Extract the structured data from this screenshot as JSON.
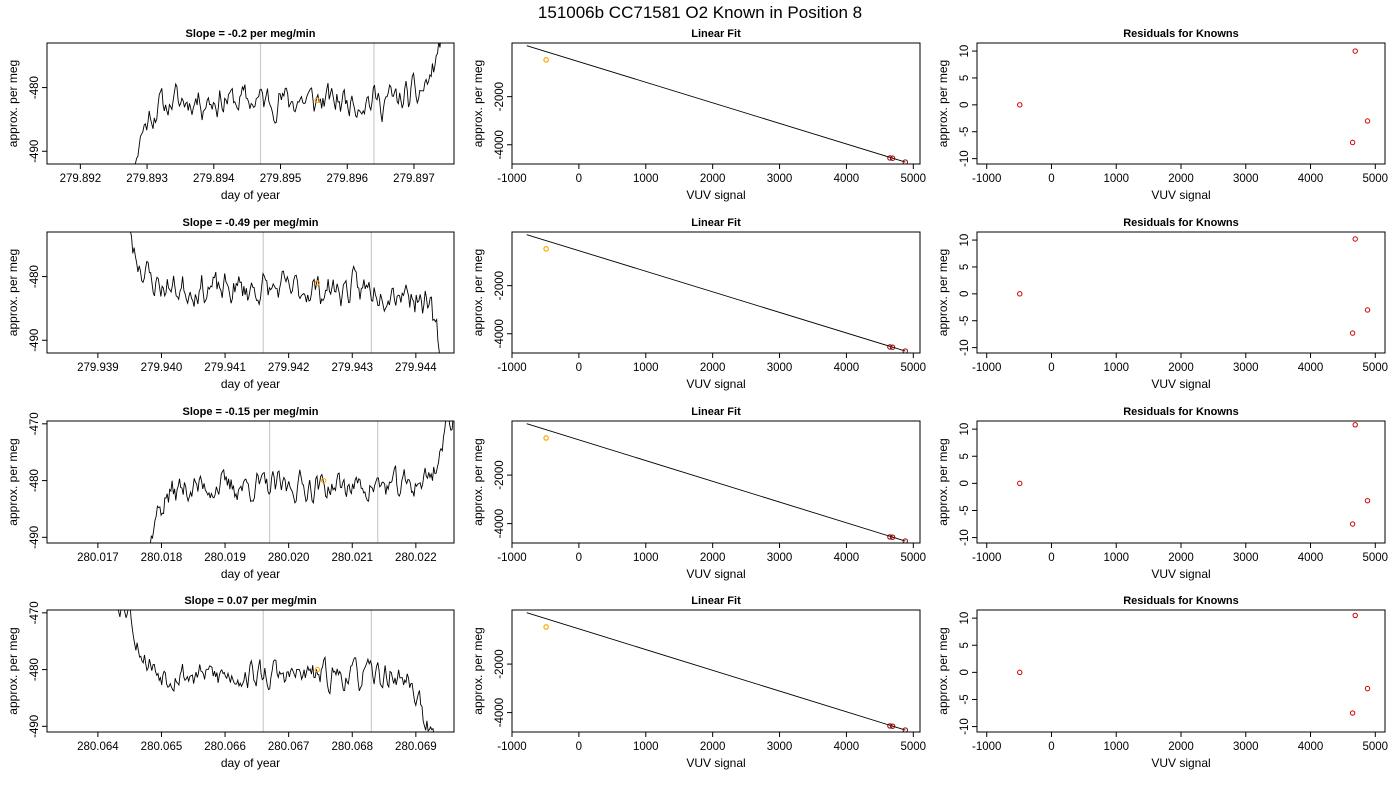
{
  "figure": {
    "title": "151006b     CC71581    O2 Known in Position  8"
  },
  "chart_data": [
    {
      "type": "line",
      "panel": "timeseries",
      "row": 1,
      "title": "Slope =  -0.2  per meg/min",
      "xlabel": "day of year",
      "ylabel": "approx. per meg",
      "xlim": [
        279.8915,
        279.8976
      ],
      "ylim": [
        -492,
        -473
      ],
      "xticks": [
        279.892,
        279.893,
        279.894,
        279.895,
        279.896,
        279.897
      ],
      "xtick_labels": [
        "279.892",
        "279.893",
        "279.894",
        "279.895",
        "279.896",
        "279.897"
      ],
      "yticks": [
        -490,
        -480
      ],
      "ytick_labels": [
        "-490",
        "-480"
      ],
      "vlines": [
        279.8947,
        279.8964
      ],
      "start_x": 279.8928,
      "end_x": 279.8974,
      "baseline": -482,
      "start_level": -493,
      "end_level": -472,
      "seed": 11,
      "known_point": {
        "x": 279.89555,
        "y": -482
      }
    },
    {
      "type": "scatter",
      "panel": "linear-fit",
      "row": 1,
      "title": "Linear Fit",
      "xlabel": "VUV signal",
      "ylabel": "approx. per meg",
      "xlim": [
        -1000,
        5100
      ],
      "ylim": [
        -4800,
        230
      ],
      "xticks": [
        -1000,
        0,
        1000,
        2000,
        3000,
        4000,
        5000
      ],
      "xtick_labels": [
        "-1000",
        "0",
        "1000",
        "2000",
        "3000",
        "4000",
        "5000"
      ],
      "yticks": [
        -4000,
        -2000
      ],
      "ytick_labels": [
        "-4000",
        "-2000"
      ],
      "fit_line": {
        "x": [
          -780,
          4880
        ],
        "y": [
          120,
          -4720
        ]
      },
      "points": {
        "x": [
          4650,
          4690,
          4880
        ],
        "y": [
          -4550,
          -4560,
          -4720
        ]
      },
      "known_point": {
        "x": -490,
        "y": -470
      }
    },
    {
      "type": "scatter",
      "panel": "residuals",
      "row": 1,
      "title": "Residuals for Knowns",
      "xlabel": "VUV signal",
      "ylabel": "approx. per meg",
      "xlim": [
        -1150,
        5150
      ],
      "ylim": [
        -11,
        11.5
      ],
      "xticks": [
        -1000,
        0,
        1000,
        2000,
        3000,
        4000,
        5000
      ],
      "xtick_labels": [
        "-1000",
        "0",
        "1000",
        "2000",
        "3000",
        "4000",
        "5000"
      ],
      "yticks": [
        -10,
        -5,
        0,
        5,
        10
      ],
      "ytick_labels": [
        "-10",
        "-5",
        "0",
        "5",
        "10"
      ],
      "points": {
        "x": [
          -490,
          4650,
          4690,
          4880
        ],
        "y": [
          0,
          -7,
          10,
          -3
        ]
      }
    },
    {
      "type": "line",
      "panel": "timeseries",
      "row": 2,
      "title": "Slope =  -0.49  per meg/min",
      "xlabel": "day of year",
      "ylabel": "approx. per meg",
      "xlim": [
        279.9382,
        279.9446
      ],
      "ylim": [
        -492,
        -473
      ],
      "xticks": [
        279.939,
        279.94,
        279.941,
        279.942,
        279.943,
        279.944
      ],
      "xtick_labels": [
        "279.939",
        "279.940",
        "279.941",
        "279.942",
        "279.943",
        "279.944"
      ],
      "yticks": [
        -490,
        -480
      ],
      "ytick_labels": [
        "-490",
        "-480"
      ],
      "vlines": [
        279.9416,
        279.9433
      ],
      "start_x": 279.9395,
      "end_x": 279.9444,
      "baseline": -482,
      "start_level": -472,
      "end_level": -493,
      "seed": 23,
      "known_point": {
        "x": 279.94245,
        "y": -481
      }
    },
    {
      "type": "scatter",
      "panel": "linear-fit",
      "row": 2,
      "title": "Linear Fit",
      "xlabel": "VUV signal",
      "ylabel": "approx. per meg",
      "xlim": [
        -1000,
        5100
      ],
      "ylim": [
        -4800,
        230
      ],
      "xticks": [
        -1000,
        0,
        1000,
        2000,
        3000,
        4000,
        5000
      ],
      "xtick_labels": [
        "-1000",
        "0",
        "1000",
        "2000",
        "3000",
        "4000",
        "5000"
      ],
      "yticks": [
        -4000,
        -2000
      ],
      "ytick_labels": [
        "-4000",
        "-2000"
      ],
      "fit_line": {
        "x": [
          -780,
          4880
        ],
        "y": [
          120,
          -4720
        ]
      },
      "points": {
        "x": [
          4650,
          4690,
          4880
        ],
        "y": [
          -4550,
          -4560,
          -4720
        ]
      },
      "known_point": {
        "x": -490,
        "y": -470
      }
    },
    {
      "type": "scatter",
      "panel": "residuals",
      "row": 2,
      "title": "Residuals for Knowns",
      "xlabel": "VUV signal",
      "ylabel": "approx. per meg",
      "xlim": [
        -1150,
        5150
      ],
      "ylim": [
        -11,
        11.5
      ],
      "xticks": [
        -1000,
        0,
        1000,
        2000,
        3000,
        4000,
        5000
      ],
      "xtick_labels": [
        "-1000",
        "0",
        "1000",
        "2000",
        "3000",
        "4000",
        "5000"
      ],
      "yticks": [
        -10,
        -5,
        0,
        5,
        10
      ],
      "ytick_labels": [
        "-10",
        "-5",
        "0",
        "5",
        "10"
      ],
      "points": {
        "x": [
          -490,
          4650,
          4690,
          4880
        ],
        "y": [
          0,
          -7.3,
          10.2,
          -3
        ]
      }
    },
    {
      "type": "line",
      "panel": "timeseries",
      "row": 3,
      "title": "Slope =  -0.15  per meg/min",
      "xlabel": "day of year",
      "ylabel": "approx. per meg",
      "xlim": [
        280.0162,
        280.0226
      ],
      "ylim": [
        -491,
        -469.5
      ],
      "xticks": [
        280.017,
        280.018,
        280.019,
        280.02,
        280.021,
        280.022
      ],
      "xtick_labels": [
        "280.017",
        "280.018",
        "280.019",
        "280.020",
        "280.021",
        "280.022"
      ],
      "yticks": [
        -490,
        -480,
        -470
      ],
      "ytick_labels": [
        "-490",
        "-480",
        "-470"
      ],
      "vlines": [
        280.0197,
        280.0214
      ],
      "start_x": 280.0178,
      "end_x": 280.0225,
      "baseline": -481,
      "start_level": -492,
      "end_level": -469,
      "seed": 37,
      "known_point": {
        "x": 280.02055,
        "y": -480
      }
    },
    {
      "type": "scatter",
      "panel": "linear-fit",
      "row": 3,
      "title": "Linear Fit",
      "xlabel": "VUV signal",
      "ylabel": "approx. per meg",
      "xlim": [
        -1000,
        5100
      ],
      "ylim": [
        -4800,
        230
      ],
      "xticks": [
        -1000,
        0,
        1000,
        2000,
        3000,
        4000,
        5000
      ],
      "xtick_labels": [
        "-1000",
        "0",
        "1000",
        "2000",
        "3000",
        "4000",
        "5000"
      ],
      "yticks": [
        -4000,
        -2000
      ],
      "ytick_labels": [
        "-4000",
        "-2000"
      ],
      "fit_line": {
        "x": [
          -780,
          4880
        ],
        "y": [
          120,
          -4720
        ]
      },
      "points": {
        "x": [
          4650,
          4690,
          4880
        ],
        "y": [
          -4550,
          -4560,
          -4720
        ]
      },
      "known_point": {
        "x": -490,
        "y": -470
      }
    },
    {
      "type": "scatter",
      "panel": "residuals",
      "row": 3,
      "title": "Residuals for Knowns",
      "xlabel": "VUV signal",
      "ylabel": "approx. per meg",
      "xlim": [
        -1150,
        5150
      ],
      "ylim": [
        -11,
        11.5
      ],
      "xticks": [
        -1000,
        0,
        1000,
        2000,
        3000,
        4000,
        5000
      ],
      "xtick_labels": [
        "-1000",
        "0",
        "1000",
        "2000",
        "3000",
        "4000",
        "5000"
      ],
      "yticks": [
        -10,
        -5,
        0,
        5,
        10
      ],
      "ytick_labels": [
        "-10",
        "-5",
        "0",
        "5",
        "10"
      ],
      "points": {
        "x": [
          -490,
          4650,
          4690,
          4880
        ],
        "y": [
          0,
          -7.5,
          10.8,
          -3.2
        ]
      }
    },
    {
      "type": "line",
      "panel": "timeseries",
      "row": 4,
      "title": "Slope =  0.07  per meg/min",
      "xlabel": "day of year",
      "ylabel": "approx. per meg",
      "xlim": [
        280.0632,
        280.0696
      ],
      "ylim": [
        -491,
        -469.5
      ],
      "xticks": [
        280.064,
        280.065,
        280.066,
        280.067,
        280.068,
        280.069
      ],
      "xtick_labels": [
        "280.064",
        "280.065",
        "280.066",
        "280.067",
        "280.068",
        "280.069"
      ],
      "yticks": [
        -490,
        -480,
        -470
      ],
      "ytick_labels": [
        "-490",
        "-480",
        "-470"
      ],
      "vlines": [
        280.0666,
        280.0683
      ],
      "start_x": 280.0645,
      "end_x": 280.0692,
      "baseline": -481,
      "start_level": -469,
      "end_level": -492,
      "seed": 53,
      "known_point": {
        "x": 280.06745,
        "y": -480
      }
    },
    {
      "type": "scatter",
      "panel": "linear-fit",
      "row": 4,
      "title": "Linear Fit",
      "xlabel": "VUV signal",
      "ylabel": "approx. per meg",
      "xlim": [
        -1000,
        5100
      ],
      "ylim": [
        -4800,
        230
      ],
      "xticks": [
        -1000,
        0,
        1000,
        2000,
        3000,
        4000,
        5000
      ],
      "xtick_labels": [
        "-1000",
        "0",
        "1000",
        "2000",
        "3000",
        "4000",
        "5000"
      ],
      "yticks": [
        -4000,
        -2000
      ],
      "ytick_labels": [
        "-4000",
        "-2000"
      ],
      "fit_line": {
        "x": [
          -780,
          4880
        ],
        "y": [
          120,
          -4720
        ]
      },
      "points": {
        "x": [
          4650,
          4690,
          4880
        ],
        "y": [
          -4550,
          -4560,
          -4720
        ]
      },
      "known_point": {
        "x": -490,
        "y": -470
      }
    },
    {
      "type": "scatter",
      "panel": "residuals",
      "row": 4,
      "title": "Residuals for Knowns",
      "xlabel": "VUV signal",
      "ylabel": "approx. per meg",
      "xlim": [
        -1150,
        5150
      ],
      "ylim": [
        -11,
        11.5
      ],
      "xticks": [
        -1000,
        0,
        1000,
        2000,
        3000,
        4000,
        5000
      ],
      "xtick_labels": [
        "-1000",
        "0",
        "1000",
        "2000",
        "3000",
        "4000",
        "5000"
      ],
      "yticks": [
        -10,
        -5,
        0,
        5,
        10
      ],
      "ytick_labels": [
        "-10",
        "-5",
        "0",
        "5",
        "10"
      ],
      "points": {
        "x": [
          -490,
          4650,
          4690,
          4880
        ],
        "y": [
          0,
          -7.5,
          10.5,
          -3
        ]
      }
    }
  ],
  "colors": {
    "series_line": "#000000",
    "fit_line": "#000000",
    "vline": "#cccccc",
    "known_point": "#ffa500",
    "unknown_point": "#8b0000",
    "residual_point": "#cc0000",
    "axis": "#000000"
  }
}
